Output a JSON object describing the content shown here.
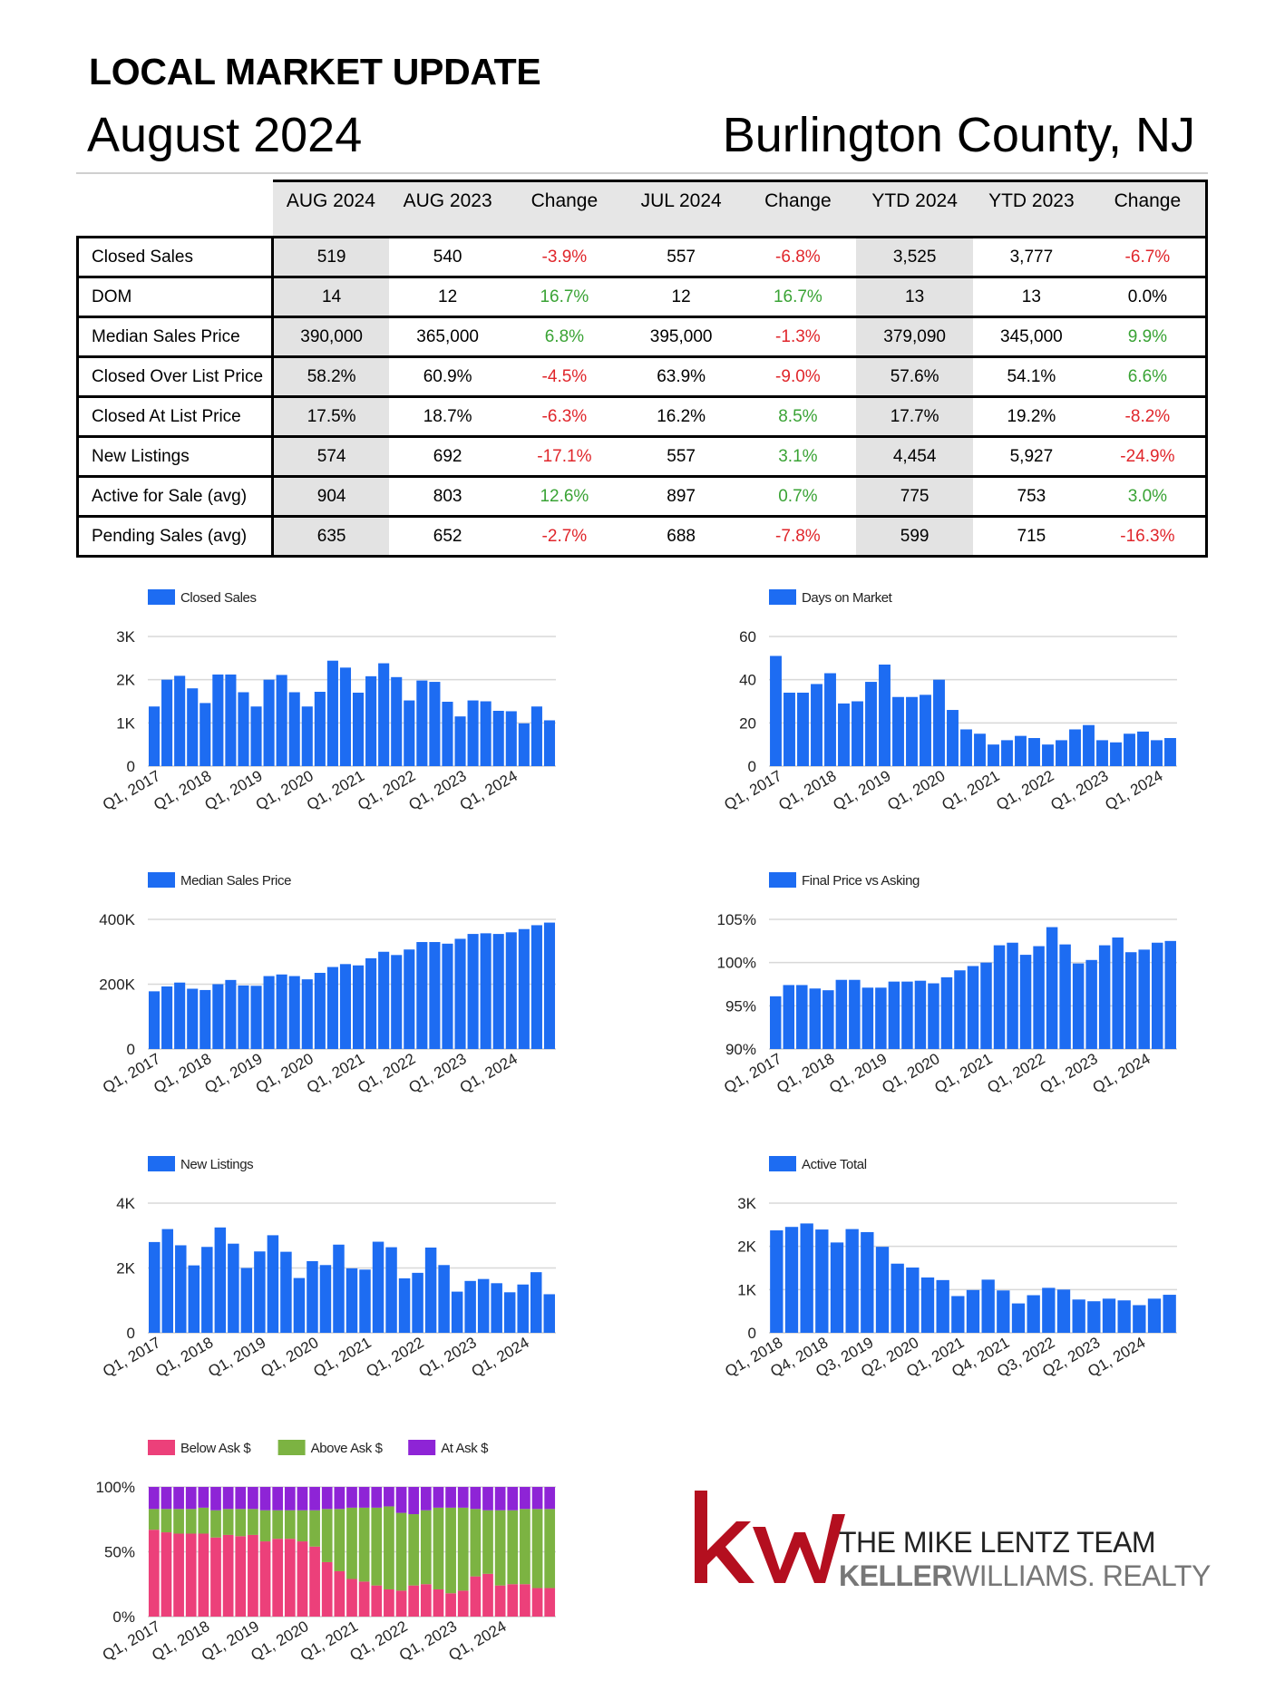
{
  "header": {
    "title": "LOCAL MARKET UPDATE",
    "month": "August 2024",
    "region": "Burlington County, NJ"
  },
  "table": {
    "columns": [
      "AUG 2024",
      "AUG 2023",
      "Change",
      "JUL 2024",
      "Change",
      "YTD 2024",
      "YTD 2023",
      "Change"
    ],
    "rows": [
      {
        "label": "Closed Sales",
        "cells": [
          "519",
          "540",
          "-3.9%",
          "557",
          "-6.8%",
          "3,525",
          "3,777",
          "-6.7%"
        ]
      },
      {
        "label": "DOM",
        "cells": [
          "14",
          "12",
          "16.7%",
          "12",
          "16.7%",
          "13",
          "13",
          "0.0%"
        ]
      },
      {
        "label": "Median Sales Price",
        "cells": [
          "390,000",
          "365,000",
          "6.8%",
          "395,000",
          "-1.3%",
          "379,090",
          "345,000",
          "9.9%"
        ]
      },
      {
        "label": "Closed Over List Price",
        "cells": [
          "58.2%",
          "60.9%",
          "-4.5%",
          "63.9%",
          "-9.0%",
          "57.6%",
          "54.1%",
          "6.6%"
        ]
      },
      {
        "label": "Closed At List Price",
        "cells": [
          "17.5%",
          "18.7%",
          "-6.3%",
          "16.2%",
          "8.5%",
          "17.7%",
          "19.2%",
          "-8.2%"
        ]
      },
      {
        "label": "New Listings",
        "cells": [
          "574",
          "692",
          "-17.1%",
          "557",
          "3.1%",
          "4,454",
          "5,927",
          "-24.9%"
        ]
      },
      {
        "label": "Active for Sale (avg)",
        "cells": [
          "904",
          "803",
          "12.6%",
          "897",
          "0.7%",
          "775",
          "753",
          "3.0%"
        ]
      },
      {
        "label": "Pending Sales (avg)",
        "cells": [
          "635",
          "652",
          "-2.7%",
          "688",
          "-7.8%",
          "599",
          "715",
          "-16.3%"
        ]
      }
    ],
    "colors": {
      "positive": "#3aa335",
      "negative": "#e0262b",
      "shade": "#e3e3e3"
    }
  },
  "chart_data": [
    {
      "id": "closed-sales",
      "type": "bar",
      "legend": "Closed Sales",
      "color": "#1d6cf2",
      "ylim": [
        0,
        3000
      ],
      "yticks": [
        0,
        1000,
        2000,
        3000
      ],
      "yticklabels": [
        "0",
        "1K",
        "2K",
        "3K"
      ],
      "xticks": [
        0,
        4,
        8,
        12,
        16,
        20,
        24,
        28
      ],
      "xticklabels": [
        "Q1, 2017",
        "Q1, 2018",
        "Q1, 2019",
        "Q1, 2020",
        "Q1, 2021",
        "Q1, 2022",
        "Q1, 2023",
        "Q1, 2024"
      ],
      "values": [
        1380,
        2000,
        2090,
        1800,
        1460,
        2120,
        2120,
        1710,
        1380,
        2000,
        2110,
        1710,
        1380,
        1720,
        2440,
        2280,
        1700,
        2080,
        2380,
        2060,
        1520,
        1980,
        1950,
        1490,
        1150,
        1520,
        1500,
        1280,
        1270,
        990,
        1380,
        1060
      ]
    },
    {
      "id": "days-on-market",
      "type": "bar",
      "legend": "Days on Market",
      "color": "#1d6cf2",
      "ylim": [
        0,
        60
      ],
      "yticks": [
        0,
        20,
        40,
        60
      ],
      "yticklabels": [
        "0",
        "20",
        "40",
        "60"
      ],
      "xticks": [
        0,
        4,
        8,
        12,
        16,
        20,
        24,
        28
      ],
      "xticklabels": [
        "Q1, 2017",
        "Q1, 2018",
        "Q1, 2019",
        "Q1, 2020",
        "Q1, 2021",
        "Q1, 2022",
        "Q1, 2023",
        "Q1, 2024"
      ],
      "values": [
        51,
        34,
        34,
        38,
        43,
        29,
        30,
        39,
        47,
        32,
        32,
        33,
        40,
        26,
        17,
        15,
        10,
        12,
        14,
        13,
        10,
        12,
        17,
        19,
        12,
        11,
        15,
        16,
        12,
        13
      ]
    },
    {
      "id": "median-sales-price",
      "type": "bar",
      "legend": "Median Sales Price",
      "color": "#1d6cf2",
      "ylim": [
        0,
        400000
      ],
      "yticks": [
        0,
        200000,
        400000
      ],
      "yticklabels": [
        "0",
        "200K",
        "400K"
      ],
      "xticks": [
        0,
        4,
        8,
        12,
        16,
        20,
        24,
        28
      ],
      "xticklabels": [
        "Q1, 2017",
        "Q1, 2018",
        "Q1, 2019",
        "Q1, 2020",
        "Q1, 2021",
        "Q1, 2022",
        "Q1, 2023",
        "Q1, 2024"
      ],
      "values": [
        178000,
        193000,
        205000,
        186000,
        182000,
        200000,
        213000,
        196000,
        195000,
        225000,
        230000,
        225000,
        215000,
        235000,
        253000,
        262000,
        258000,
        280000,
        300000,
        290000,
        307000,
        330000,
        330000,
        325000,
        340000,
        355000,
        357000,
        355000,
        360000,
        370000,
        382000,
        390000
      ]
    },
    {
      "id": "final-price-vs-asking",
      "type": "bar",
      "legend": "Final Price vs Asking",
      "color": "#1d6cf2",
      "ylim": [
        90,
        105
      ],
      "yticks": [
        90,
        95,
        100,
        105
      ],
      "yticklabels": [
        "90%",
        "95%",
        "100%",
        "105%"
      ],
      "xticks": [
        0,
        4,
        8,
        12,
        16,
        20,
        24,
        28
      ],
      "xticklabels": [
        "Q1, 2017",
        "Q1, 2018",
        "Q1, 2019",
        "Q1, 2020",
        "Q1, 2021",
        "Q1, 2022",
        "Q1, 2023",
        "Q1, 2024"
      ],
      "values": [
        96.1,
        97.4,
        97.4,
        97.0,
        96.8,
        98.0,
        98.0,
        97.1,
        97.1,
        97.8,
        97.8,
        97.9,
        97.6,
        98.3,
        99.1,
        99.6,
        100.0,
        102.0,
        102.3,
        100.9,
        101.9,
        104.1,
        102.1,
        99.9,
        100.3,
        102.0,
        102.9,
        101.2,
        101.5,
        102.3,
        102.5
      ]
    },
    {
      "id": "new-listings",
      "type": "bar",
      "legend": "New Listings",
      "color": "#1d6cf2",
      "ylim": [
        0,
        4000
      ],
      "yticks": [
        0,
        2000,
        4000
      ],
      "yticklabels": [
        "0",
        "2K",
        "4K"
      ],
      "xticks": [
        0,
        4,
        8,
        12,
        16,
        20,
        24,
        28
      ],
      "xticklabels": [
        "Q1, 2017",
        "Q1, 2018",
        "Q1, 2019",
        "Q1, 2020",
        "Q1, 2021",
        "Q1, 2022",
        "Q1, 2023",
        "Q1, 2024"
      ],
      "values": [
        2800,
        3200,
        2700,
        2080,
        2650,
        3250,
        2750,
        2000,
        2510,
        3010,
        2500,
        1690,
        2210,
        2090,
        2720,
        1990,
        1950,
        2810,
        2640,
        1680,
        1850,
        2630,
        2090,
        1270,
        1600,
        1660,
        1530,
        1250,
        1490,
        1870,
        1190
      ]
    },
    {
      "id": "active-total",
      "type": "bar",
      "legend": "Active Total",
      "color": "#1d6cf2",
      "ylim": [
        0,
        3000
      ],
      "yticks": [
        0,
        1000,
        2000,
        3000
      ],
      "yticklabels": [
        "0",
        "1K",
        "2K",
        "3K"
      ],
      "xticks": [
        0,
        3,
        6,
        9,
        12,
        15,
        18,
        21,
        24
      ],
      "xticklabels": [
        "Q1, 2018",
        "Q4, 2018",
        "Q3, 2019",
        "Q2, 2020",
        "Q1, 2021",
        "Q4, 2021",
        "Q3, 2022",
        "Q2, 2023",
        "Q1, 2024"
      ],
      "values": [
        2370,
        2450,
        2530,
        2390,
        2090,
        2400,
        2330,
        1990,
        1600,
        1510,
        1280,
        1220,
        850,
        990,
        1230,
        980,
        680,
        870,
        1040,
        1000,
        770,
        730,
        790,
        750,
        640,
        790,
        880
      ]
    },
    {
      "id": "list-price-outcome",
      "type": "bar",
      "stacked": true,
      "ylim": [
        0,
        100
      ],
      "yticks": [
        0,
        50,
        100
      ],
      "yticklabels": [
        "0%",
        "50%",
        "100%"
      ],
      "xticks": [
        0,
        4,
        8,
        12,
        16,
        20,
        24,
        28
      ],
      "xticklabels": [
        "Q1, 2017",
        "Q1, 2018",
        "Q1, 2019",
        "Q1, 2020",
        "Q1, 2021",
        "Q1, 2022",
        "Q1, 2023",
        "Q1, 2024"
      ],
      "series": [
        {
          "name": "Below Ask $",
          "color": "#ec407a",
          "values": [
            67,
            65,
            64,
            64,
            64,
            61,
            63,
            62,
            63,
            58,
            60,
            60,
            58,
            54,
            42,
            35,
            29,
            27,
            24,
            21,
            20,
            24,
            25,
            21,
            18,
            20,
            31,
            33,
            24,
            25,
            25,
            22,
            22
          ]
        },
        {
          "name": "Above Ask $",
          "color": "#7cb342",
          "values": [
            16,
            18,
            19,
            19,
            20,
            21,
            20,
            21,
            20,
            24,
            22,
            22,
            24,
            28,
            41,
            48,
            55,
            57,
            60,
            64,
            60,
            55,
            57,
            63,
            66,
            64,
            52,
            49,
            58,
            57,
            58,
            61,
            61
          ]
        },
        {
          "name": "At Ask $",
          "color": "#8e24d6",
          "values": [
            17,
            17,
            17,
            17,
            16,
            18,
            17,
            17,
            17,
            18,
            18,
            18,
            18,
            18,
            17,
            17,
            16,
            16,
            16,
            15,
            20,
            21,
            18,
            16,
            16,
            16,
            17,
            18,
            18,
            18,
            17,
            17,
            17
          ]
        }
      ]
    }
  ],
  "logo": {
    "mark": "kw",
    "team": "THE MIKE LENTZ TEAM",
    "brand_bold": "KELLER",
    "brand_rest": "WILLIAMS. REALTY",
    "color": "#b40f1f"
  }
}
